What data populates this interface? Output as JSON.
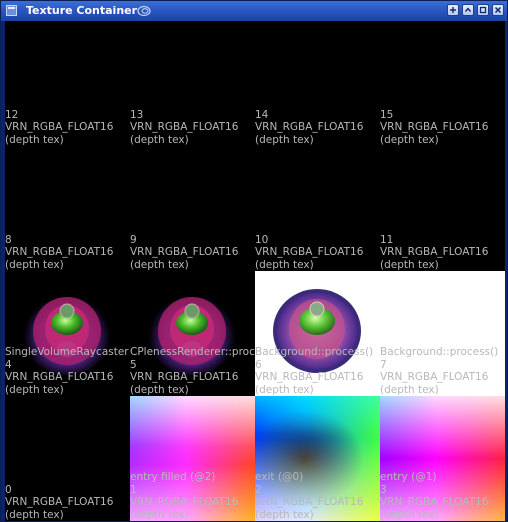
{
  "window": {
    "title": "Texture Container",
    "buttons": [
      "float-icon",
      "minimize-icon",
      "maximize-icon",
      "close-icon"
    ]
  },
  "tiles": [
    {
      "index": "12",
      "format": "VRN_RGBA_FLOAT16",
      "kind": "(depth tex)",
      "name": ""
    },
    {
      "index": "13",
      "format": "VRN_RGBA_FLOAT16",
      "kind": "(depth tex)",
      "name": ""
    },
    {
      "index": "14",
      "format": "VRN_RGBA_FLOAT16",
      "kind": "(depth tex)",
      "name": ""
    },
    {
      "index": "15",
      "format": "VRN_RGBA_FLOAT16",
      "kind": "(depth tex)",
      "name": ""
    },
    {
      "index": "8",
      "format": "VRN_RGBA_FLOAT16",
      "kind": "(depth tex)",
      "name": ""
    },
    {
      "index": "9",
      "format": "VRN_RGBA_FLOAT16",
      "kind": "(depth tex)",
      "name": ""
    },
    {
      "index": "10",
      "format": "VRN_RGBA_FLOAT16",
      "kind": "(depth tex)",
      "name": ""
    },
    {
      "index": "11",
      "format": "VRN_RGBA_FLOAT16",
      "kind": "(depth tex)",
      "name": ""
    },
    {
      "index": "4",
      "format": "VRN_RGBA_FLOAT16",
      "kind": "(depth tex)",
      "name": "SingleVolumeRaycaster"
    },
    {
      "index": "5",
      "format": "VRN_RGBA_FLOAT16",
      "kind": "(depth tex)",
      "name": "CPlenessRenderer::process()"
    },
    {
      "index": "6",
      "format": "VRN_RGBA_FLOAT16",
      "kind": "(depth tex)",
      "name": "Background::process()"
    },
    {
      "index": "7",
      "format": "VRN_RGBA_FLOAT16",
      "kind": "(depth tex)",
      "name": "Background::process()"
    },
    {
      "index": "0",
      "format": "VRN_RGBA_FLOAT16",
      "kind": "(depth tex)",
      "name": ""
    },
    {
      "index": "1",
      "format": "VRN_RGBA_FLOAT16",
      "kind": "(depth tex)",
      "name": "entry filled (@2)"
    },
    {
      "index": "2",
      "format": "VRN_RGBA_FLOAT16",
      "kind": "(depth tex)",
      "name": "exit (@0)"
    },
    {
      "index": "3",
      "format": "VRN_RGBA_FLOAT16",
      "kind": "(depth tex)",
      "name": "entry (@1)"
    }
  ]
}
